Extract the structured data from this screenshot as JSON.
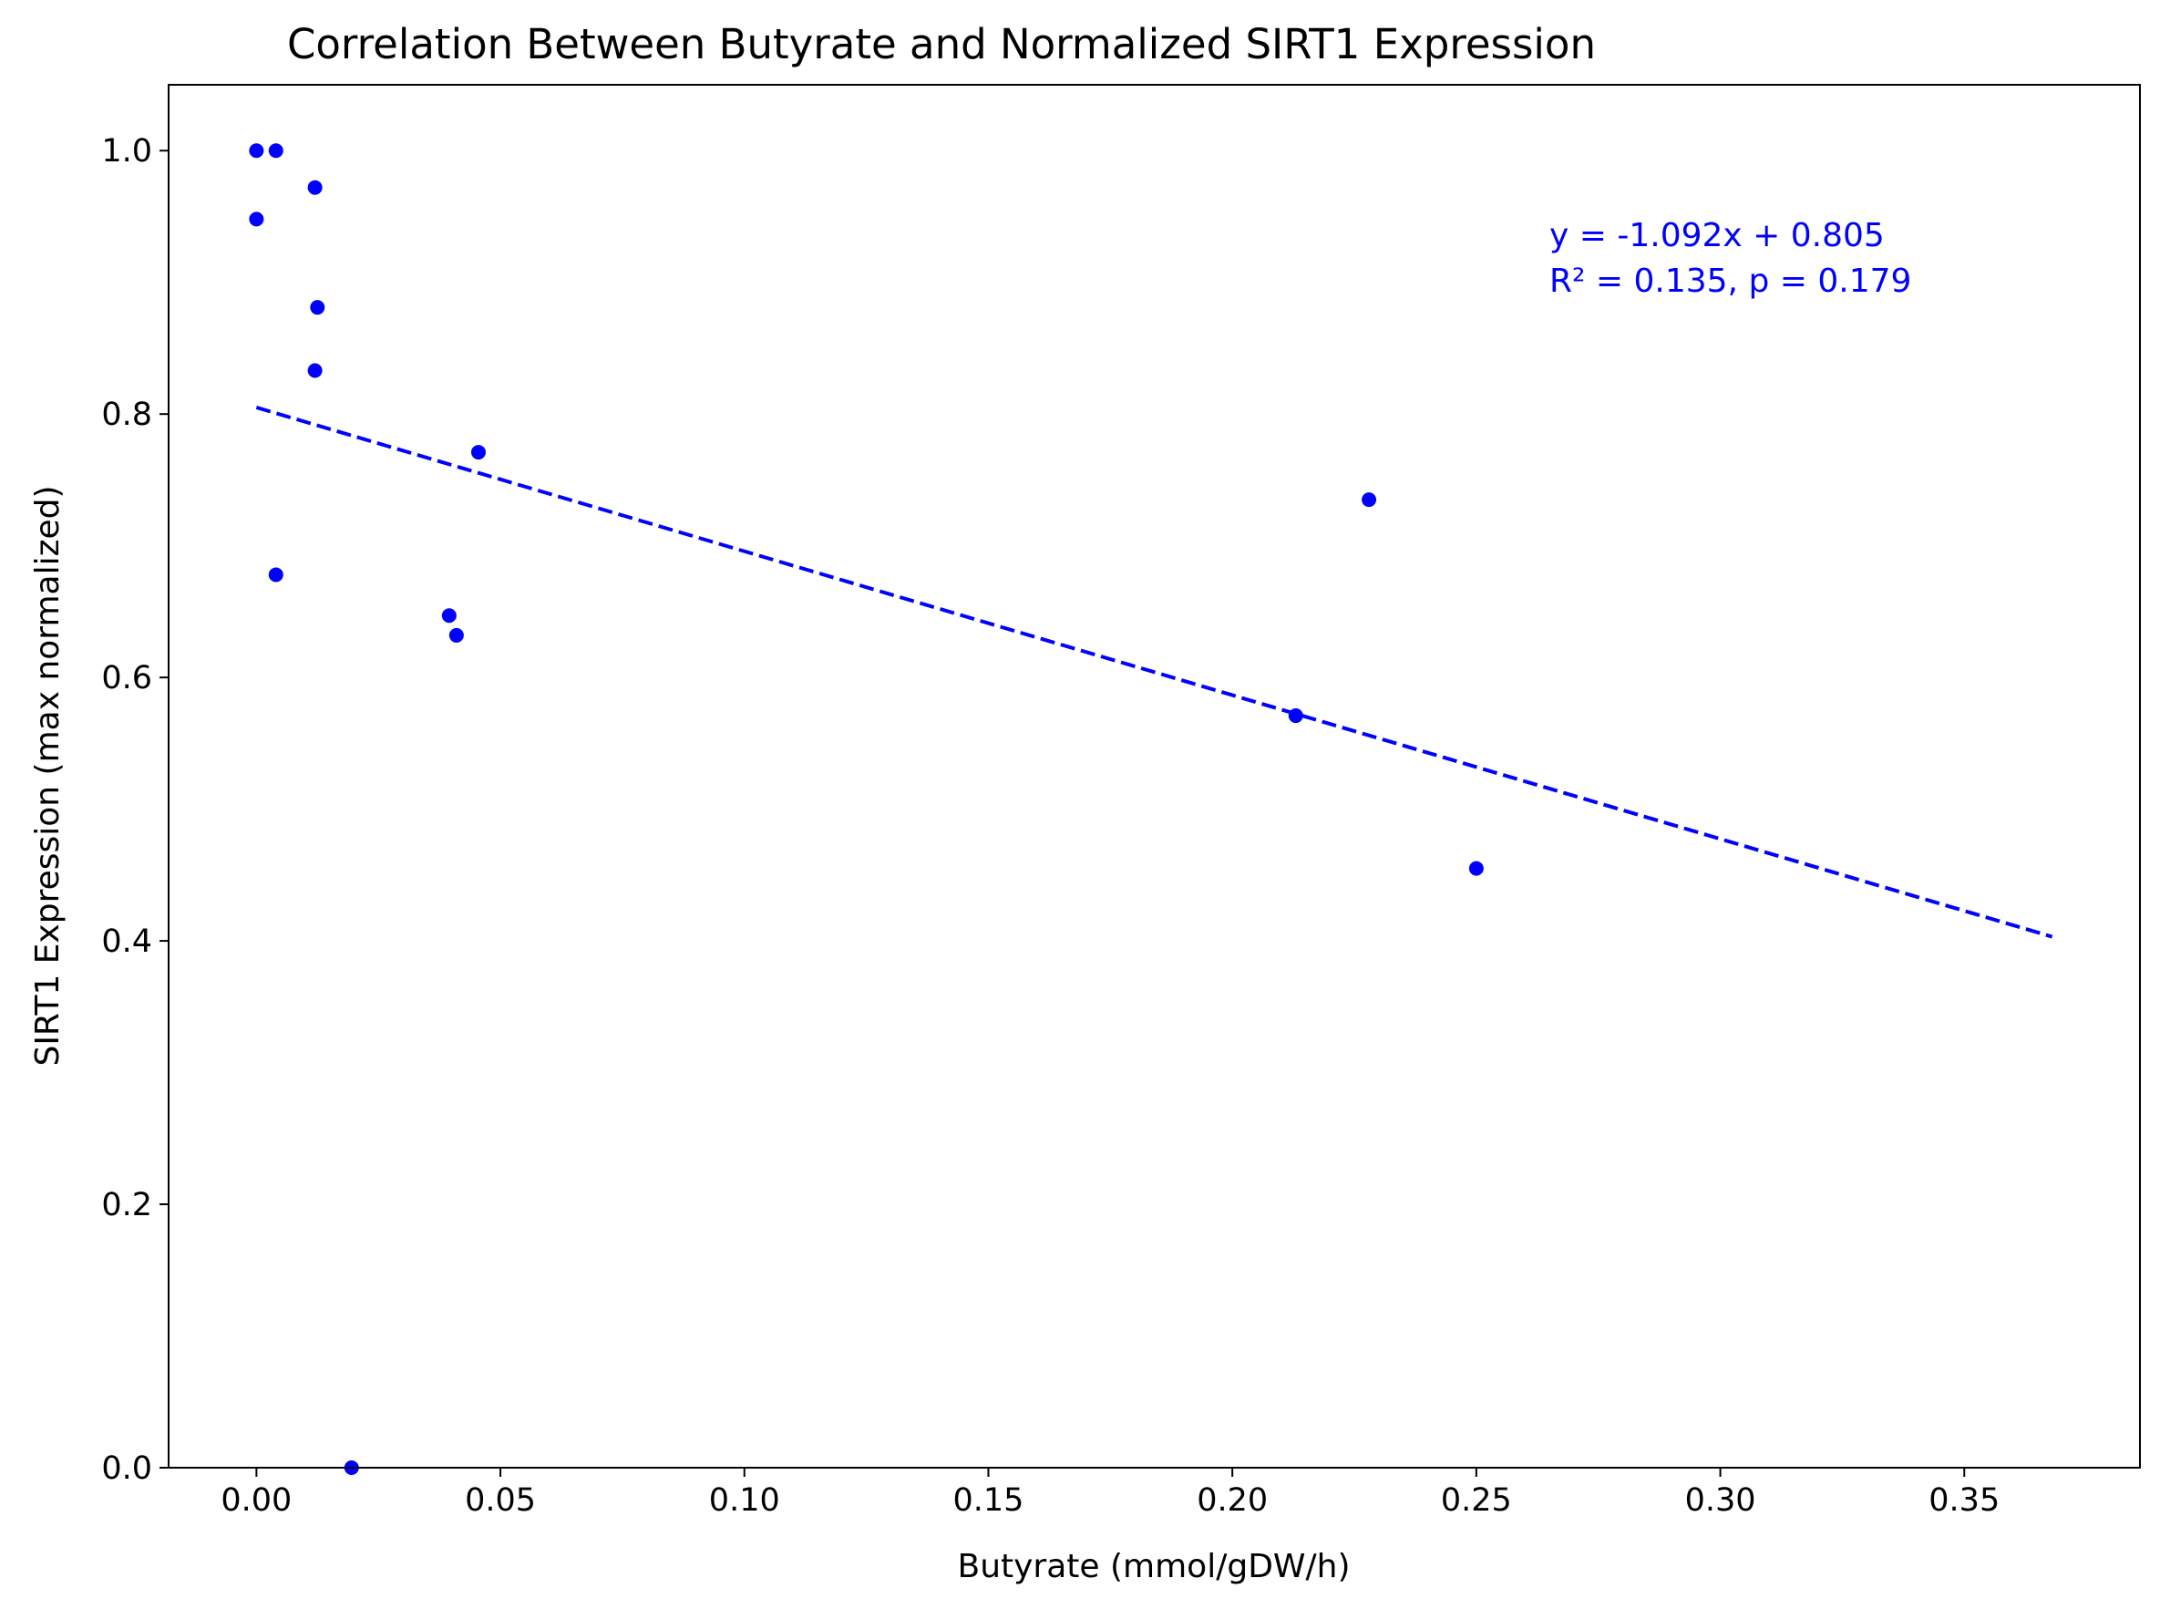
{
  "chart_data": {
    "type": "scatter",
    "title": "Correlation Between Butyrate and Normalized SIRT1 Expression",
    "xlabel": "Butyrate (mmol/gDW/h)",
    "ylabel": "SIRT1 Expression (max normalized)",
    "xlim": [
      -0.018,
      0.386
    ],
    "ylim": [
      0.0,
      1.05
    ],
    "x_ticks": [
      0.0,
      0.05,
      0.1,
      0.15,
      0.2,
      0.25,
      0.3,
      0.35
    ],
    "x_tick_labels": [
      "0.00",
      "0.05",
      "0.10",
      "0.15",
      "0.20",
      "0.25",
      "0.30",
      "0.35"
    ],
    "y_ticks": [
      0.0,
      0.2,
      0.4,
      0.6,
      0.8,
      1.0
    ],
    "y_tick_labels": [
      "0.0",
      "0.2",
      "0.4",
      "0.6",
      "0.8",
      "1.0"
    ],
    "grid": false,
    "point_color": "#0000ff",
    "points": [
      {
        "x": 0.0,
        "y": 1.0
      },
      {
        "x": 0.004,
        "y": 1.0
      },
      {
        "x": 0.0,
        "y": 0.948
      },
      {
        "x": 0.012,
        "y": 0.972
      },
      {
        "x": 0.0125,
        "y": 0.881
      },
      {
        "x": 0.012,
        "y": 0.833
      },
      {
        "x": 0.004,
        "y": 0.678
      },
      {
        "x": 0.0455,
        "y": 0.771
      },
      {
        "x": 0.0395,
        "y": 0.647
      },
      {
        "x": 0.041,
        "y": 0.632
      },
      {
        "x": 0.0195,
        "y": 0.0
      },
      {
        "x": 0.213,
        "y": 0.571
      },
      {
        "x": 0.228,
        "y": 0.735
      },
      {
        "x": 0.25,
        "y": 0.455
      }
    ],
    "regression": {
      "slope": -1.092,
      "intercept": 0.805,
      "x_start": 0.0,
      "x_end": 0.368,
      "style": "dashed",
      "color": "#0000ff"
    },
    "annotation": {
      "lines": [
        "y = -1.092x + 0.805",
        "R² = 0.135, p = 0.179"
      ],
      "color": "#0000ff",
      "position": "top-right"
    }
  }
}
